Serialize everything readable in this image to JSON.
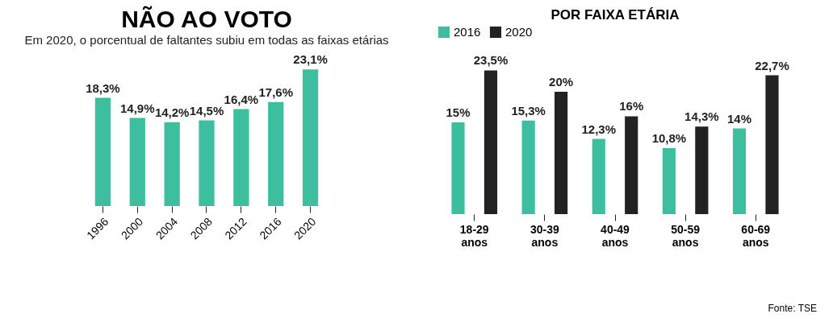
{
  "chart_data": [
    {
      "type": "bar",
      "title": "NÃO AO VOTO",
      "subtitle": "Em 2020, o porcentual de faltantes subiu em todas as faixas etárias",
      "categories": [
        "1996",
        "2000",
        "2004",
        "2008",
        "2012",
        "2016",
        "2020"
      ],
      "values": [
        18.3,
        14.9,
        14.2,
        14.5,
        16.4,
        17.6,
        23.1
      ],
      "color": "#3dbf9f",
      "value_labels": [
        "18,3%",
        "14,9%",
        "14,2%",
        "14,5%",
        "16,4%",
        "17,6%",
        "23,1%"
      ]
    },
    {
      "type": "bar",
      "title": "POR FAIXA ETÁRIA",
      "categories": [
        "18-29 anos",
        "30-39 anos",
        "40-49 anos",
        "50-59 anos",
        "60-69 anos"
      ],
      "legend": "top",
      "annotations": [
        "Fonte: TSE"
      ],
      "series": [
        {
          "name": "2016",
          "color": "#3dbf9f",
          "values": [
            15,
            15.3,
            12.3,
            10.8,
            14
          ],
          "value_labels": [
            "15%",
            "15,3%",
            "12,3%",
            "10,8%",
            "14%"
          ]
        },
        {
          "name": "2020",
          "color": "#222222",
          "values": [
            23.5,
            20,
            16,
            14.3,
            22.7
          ],
          "value_labels": [
            "23,5%",
            "20%",
            "16%",
            "14,3%",
            "22,7%"
          ]
        }
      ]
    }
  ]
}
